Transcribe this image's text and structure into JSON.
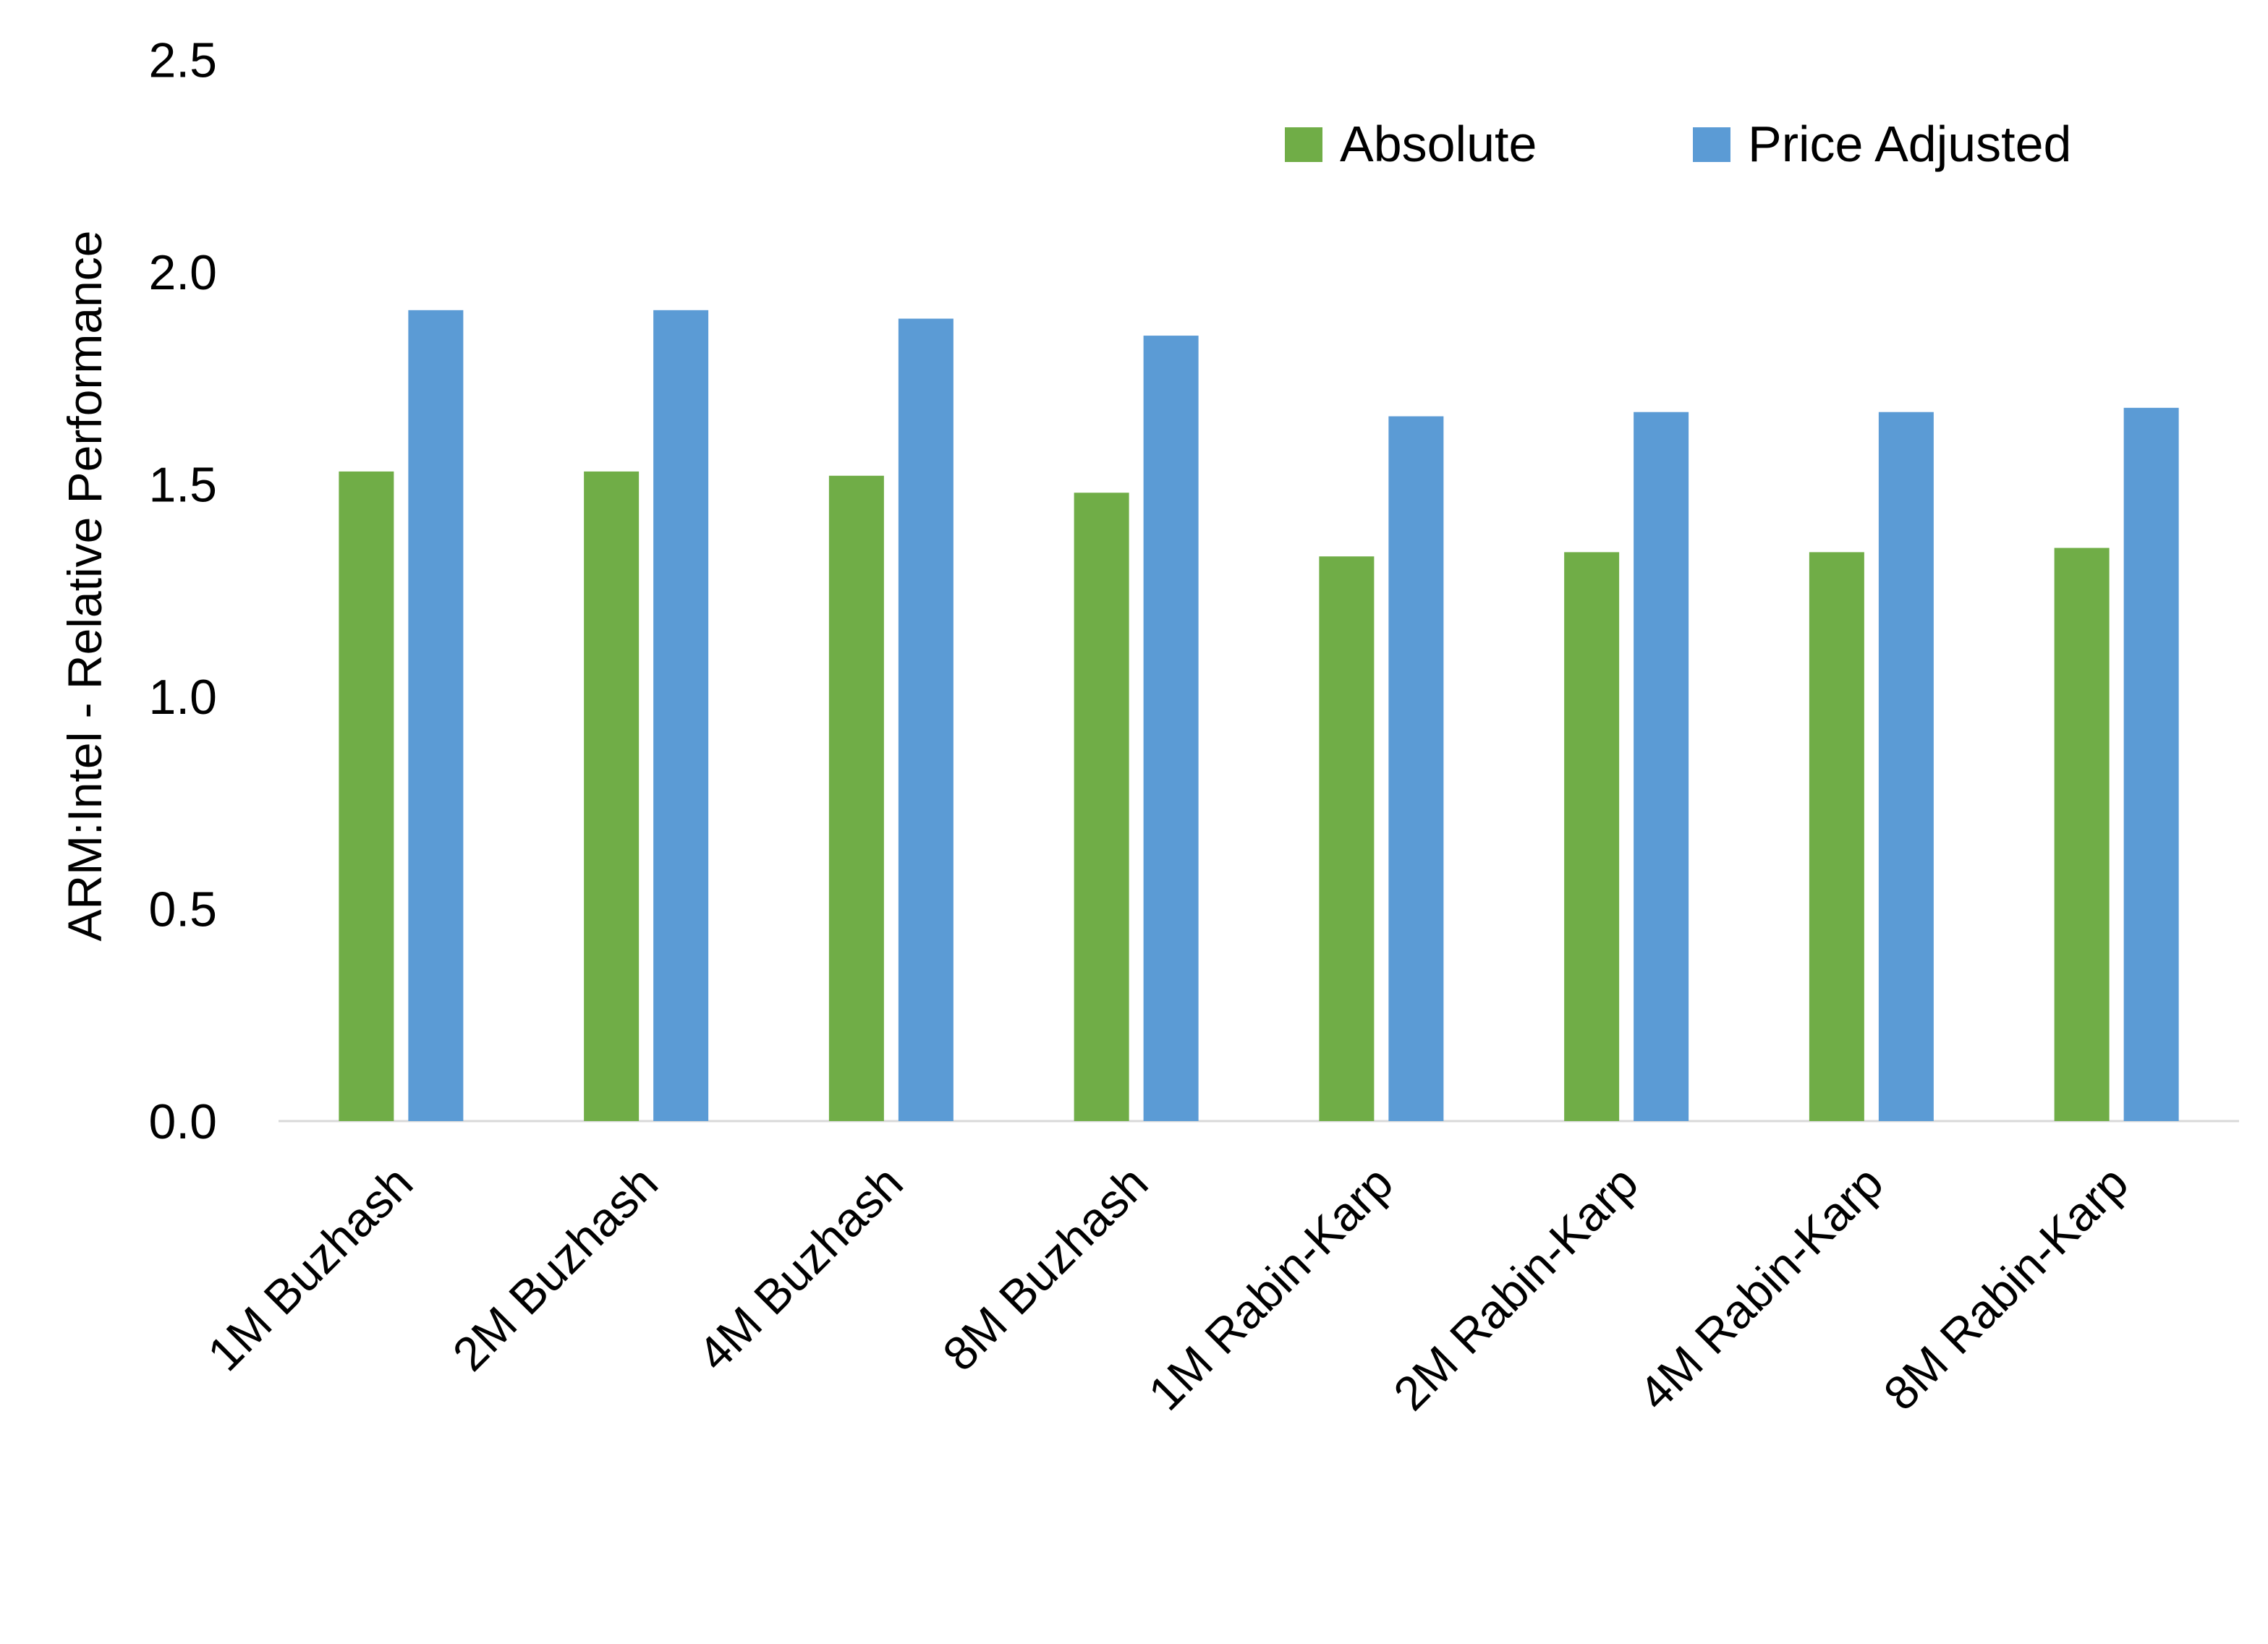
{
  "chart_data": {
    "type": "bar",
    "title": "",
    "xlabel": "",
    "ylabel": "ARM:Intel - Relative Performance",
    "ylim": [
      0,
      2.5
    ],
    "yticks": [
      "0.0",
      "0.5",
      "1.0",
      "1.5",
      "2.0",
      "2.5"
    ],
    "grid": false,
    "legend_position": "top-right",
    "categories": [
      "1M Buzhash",
      "2M Buzhash",
      "4M Buzhash",
      "8M Buzhash",
      "1M Rabin-Karp",
      "2M Rabin-Karp",
      "4M Rabin-Karp",
      "8M Rabin-Karp"
    ],
    "series": [
      {
        "name": "Absolute",
        "color": "#70AD47",
        "values": [
          1.53,
          1.53,
          1.52,
          1.48,
          1.33,
          1.34,
          1.34,
          1.35
        ]
      },
      {
        "name": "Price Adjusted",
        "color": "#5B9BD5",
        "values": [
          1.91,
          1.91,
          1.89,
          1.85,
          1.66,
          1.67,
          1.67,
          1.68
        ]
      }
    ]
  }
}
